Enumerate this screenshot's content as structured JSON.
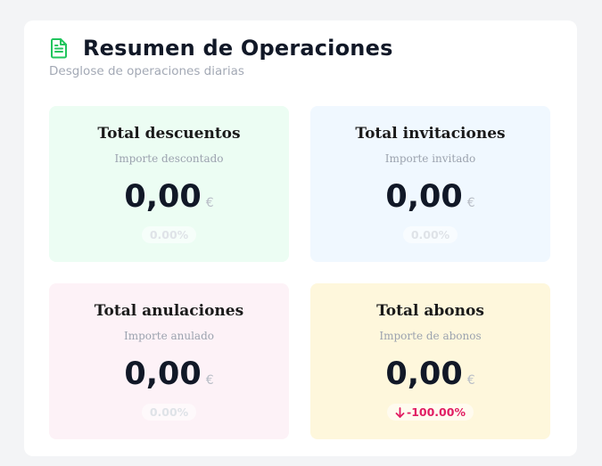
{
  "header": {
    "title": "Resumen de Operaciones",
    "subtitle": "Desglose de operaciones diarias",
    "icon": "document-icon",
    "accent_color": "#22c55e"
  },
  "cards": [
    {
      "title": "Total descuentos",
      "subtitle": "Importe descontado",
      "amount": "0,00",
      "currency": "€",
      "change": "0.00%",
      "background": "#ecfdf3"
    },
    {
      "title": "Total invitaciones",
      "subtitle": "Importe invitado",
      "amount": "0,00",
      "currency": "€",
      "change": "0.00%",
      "background": "#f0f8ff"
    },
    {
      "title": "Total anulaciones",
      "subtitle": "Importe anulado",
      "amount": "0,00",
      "currency": "€",
      "change": "0.00%",
      "background": "#fdf2f7"
    },
    {
      "title": "Total abonos",
      "subtitle": "Importe de abonos",
      "amount": "0,00",
      "currency": "€",
      "change": "-100.00%",
      "change_icon": "arrow-down-icon",
      "change_color": "#e11d63",
      "background": "#fef7dc"
    }
  ]
}
